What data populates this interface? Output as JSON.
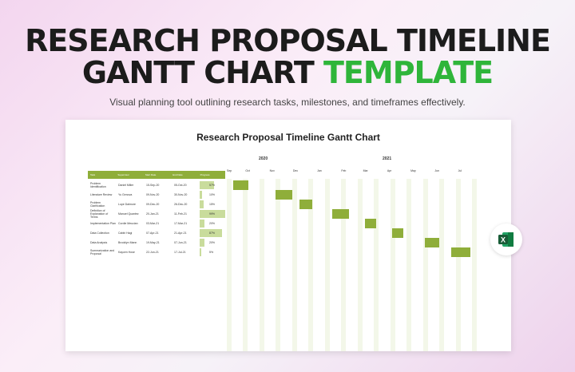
{
  "header": {
    "line1": "RESEARCH PROPOSAL TIMELINE",
    "line2a": "GANTT CHART ",
    "line2b": "TEMPLATE",
    "subtitle": "Visual planning tool outlining research tasks, milestones, and timeframes effectively."
  },
  "accent": "#8fae3a",
  "chart_data": {
    "type": "gantt",
    "title": "Research Proposal Timeline Gantt Chart",
    "columns": [
      "Task",
      "Supervisor",
      "Start Date",
      "End Date",
      "Progress"
    ],
    "years": [
      "2020",
      "2021"
    ],
    "months": [
      "Sep",
      "Oct",
      "Nov",
      "Dec",
      "Jan",
      "Feb",
      "Mar",
      "Apr",
      "May",
      "Jun",
      "Jul"
    ],
    "rows": [
      {
        "task": "Problem Identification",
        "supervisor": "Daniel Miller",
        "start": "15-Sep-20",
        "end": "05-Oct-20",
        "progress": "57%"
      },
      {
        "task": "Literature Review",
        "supervisor": "Yu Genova",
        "start": "09-Nov-20",
        "end": "30-Nov-20",
        "progress": "10%"
      },
      {
        "task": "Problem Clarification",
        "supervisor": "Lupe Dalmore",
        "start": "09-Dec-20",
        "end": "26-Dec-20",
        "progress": "15%"
      },
      {
        "task": "Definition of Explanation of Terms",
        "supervisor": "Manuel Quantez",
        "start": "20-Jan-21",
        "end": "11-Feb-21",
        "progress": "99%"
      },
      {
        "task": "Implementation Plan",
        "supervisor": "Cordie Meucian",
        "start": "03-Mar-21",
        "end": "17-Mar-21",
        "progress": "20%"
      },
      {
        "task": "Data Collection",
        "supervisor": "Cabbi Hagi",
        "start": "07-Apr-21",
        "end": "21-Apr-21",
        "progress": "87%"
      },
      {
        "task": "Data Analysis",
        "supervisor": "Brooklyn Mann",
        "start": "19-May-21",
        "end": "07-Jun-21",
        "progress": "20%"
      },
      {
        "task": "Summarization and Proposal",
        "supervisor": "Kaycen Hose",
        "start": "22-Jun-21",
        "end": "17-Jul-21",
        "progress": "5%"
      }
    ]
  },
  "icons": {
    "excel": "excel-icon"
  }
}
